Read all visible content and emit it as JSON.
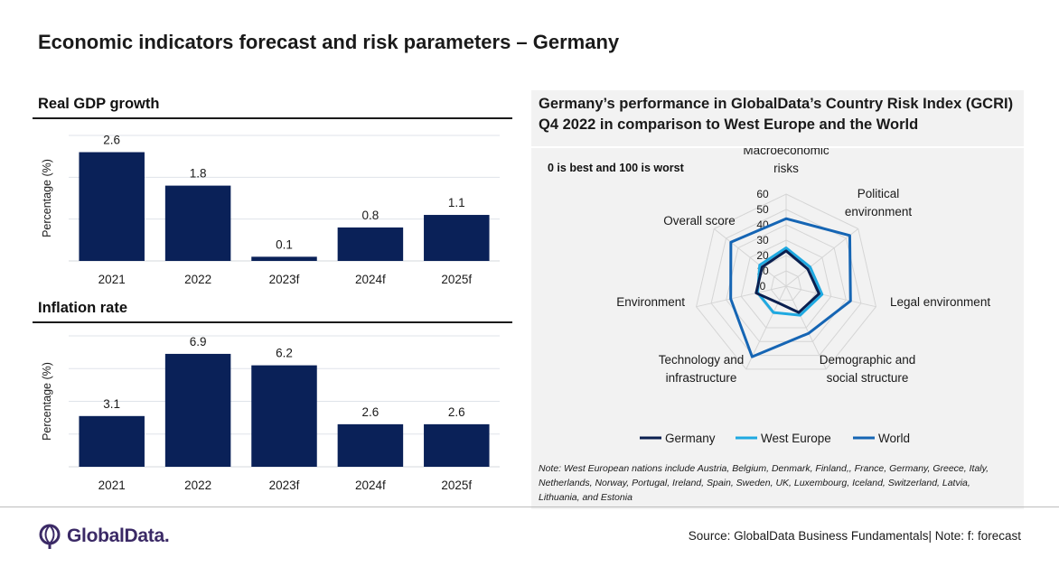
{
  "title": "Economic indicators forecast and risk parameters – Germany",
  "gdp": {
    "section_title": "Real GDP growth",
    "ylabel": "Percentage (%)",
    "categories": [
      "2021",
      "2022",
      "2023f",
      "2024f",
      "2025f"
    ],
    "values": [
      2.6,
      1.8,
      0.1,
      0.8,
      1.1
    ],
    "labels": [
      "2.6",
      "1.8",
      "0.1",
      "0.8",
      "1.1"
    ]
  },
  "inflation": {
    "section_title": "Inflation rate",
    "ylabel": "Percentage (%)",
    "categories": [
      "2021",
      "2022",
      "2023f",
      "2024f",
      "2025f"
    ],
    "values": [
      3.1,
      6.9,
      6.2,
      2.6,
      2.6
    ],
    "labels": [
      "3.1",
      "6.9",
      "6.2",
      "2.6",
      "2.6"
    ]
  },
  "gcri": {
    "title_line1": "Germany’s performance in GlobalData’s Country Risk Index (GCRI)",
    "title_line2": "Q4 2022 in comparison to West Europe and the World",
    "subnote": "0 is best and 100 is worst",
    "note": "Note: West European nations include Austria, Belgium, Denmark, Finland,, France, Germany, Greece, Italy, Netherlands, Norway, Portugal, Ireland, Spain, Sweden, UK, Luxembourg, Iceland, Switzerland, Latvia, Lithuania, and Estonia"
  },
  "chart_data": [
    {
      "type": "bar",
      "title": "Real GDP growth",
      "xlabel": "",
      "ylabel": "Percentage (%)",
      "categories": [
        "2021",
        "2022",
        "2023f",
        "2024f",
        "2025f"
      ],
      "values": [
        2.6,
        1.8,
        0.1,
        0.8,
        1.1
      ],
      "ylim": [
        0,
        3
      ],
      "grid": true,
      "color": "#0a2158"
    },
    {
      "type": "bar",
      "title": "Inflation rate",
      "xlabel": "",
      "ylabel": "Percentage (%)",
      "categories": [
        "2021",
        "2022",
        "2023f",
        "2024f",
        "2025f"
      ],
      "values": [
        3.1,
        6.9,
        6.2,
        2.6,
        2.6
      ],
      "ylim": [
        0,
        8
      ],
      "grid": true,
      "color": "#0a2158"
    },
    {
      "type": "radar",
      "axes": [
        "Macroeconomic risks",
        "Political environment",
        "Legal environment",
        "Demographic and social structure",
        "Technology and infrastructure",
        "Environment",
        "Overall score"
      ],
      "axis_label_lines": [
        [
          "Macroeconomic",
          "risks"
        ],
        [
          "Political",
          "environment"
        ],
        [
          "Legal environment"
        ],
        [
          "Demographic and",
          "social structure"
        ],
        [
          "Technology and",
          "infrastructure"
        ],
        [
          "Environment"
        ],
        [
          "Overall score"
        ]
      ],
      "ticks": [
        "0",
        "10",
        "20",
        "30",
        "40",
        "50",
        "60"
      ],
      "rmax": 60,
      "grid": true,
      "legend_position": "bottom",
      "series": [
        {
          "name": "Germany",
          "color": "#0a1f4f",
          "values": [
            23,
            18,
            22,
            19,
            12,
            20,
            20
          ]
        },
        {
          "name": "West Europe",
          "color": "#1fa9e1",
          "values": [
            25,
            20,
            24,
            21,
            19,
            19,
            22
          ]
        },
        {
          "name": "World",
          "color": "#1565b4",
          "values": [
            44,
            53,
            43,
            34,
            51,
            37,
            46
          ]
        }
      ]
    }
  ],
  "footer": {
    "logo_text": "GlobalData.",
    "source": "Source: GlobalData Business Fundamentals| Note: f: forecast"
  }
}
